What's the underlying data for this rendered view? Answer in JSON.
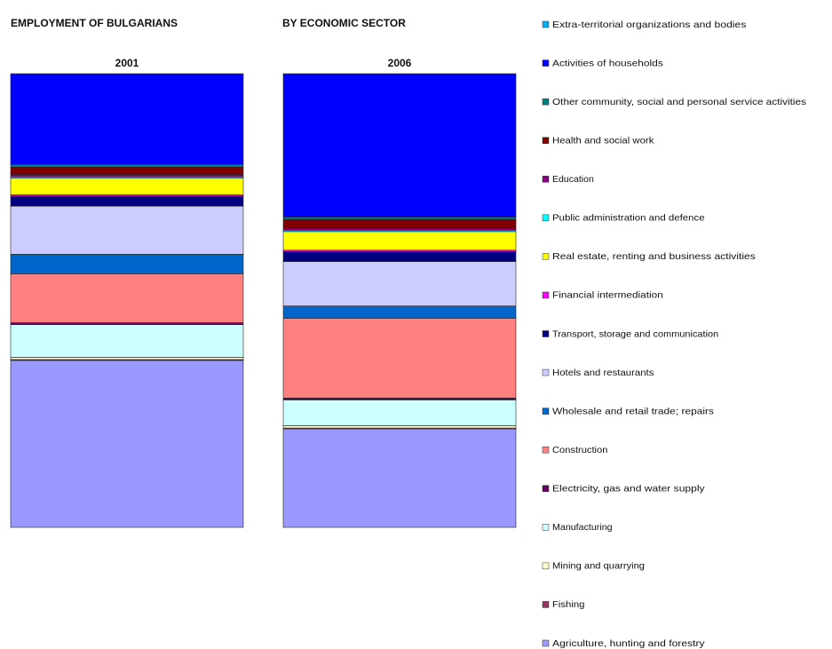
{
  "chart_data": {
    "type": "stacked-bar-100",
    "title": [
      "EMPLOYMENT OF BULGARIANS",
      "BY ECONOMIC SECTOR"
    ],
    "categories": [
      "2001",
      "2006"
    ],
    "ylim": [
      0,
      100
    ],
    "series": [
      {
        "name": "Agriculture, hunting and forestry",
        "color": "#9999ff",
        "values": [
          36.8,
          21.7
        ]
      },
      {
        "name": "Fishing",
        "color": "#993366",
        "values": [
          0.2,
          0.2
        ]
      },
      {
        "name": "Mining and quarrying",
        "color": "#ffffcc",
        "values": [
          0.5,
          0.5
        ]
      },
      {
        "name": "Manufacturing",
        "color": "#ccffff",
        "values": [
          7.2,
          5.7
        ]
      },
      {
        "name": "Electricity, gas and water supply",
        "color": "#660066",
        "values": [
          0.4,
          0.4
        ]
      },
      {
        "name": "Construction",
        "color": "#ff8080",
        "values": [
          10.8,
          17.6
        ]
      },
      {
        "name": "Wholesale and retail trade; repairs",
        "color": "#0066cc",
        "values": [
          4.3,
          2.7
        ]
      },
      {
        "name": "Hotels and restaurants",
        "color": "#ccccff",
        "values": [
          10.6,
          9.8
        ]
      },
      {
        "name": "Transport, storage and communication",
        "color": "#000080",
        "values": [
          2.2,
          2.2
        ]
      },
      {
        "name": "Financial intermediation",
        "color": "#ff00ff",
        "values": [
          0.3,
          0.3
        ]
      },
      {
        "name": "Real estate, renting and business activities",
        "color": "#ffff00",
        "values": [
          3.7,
          4.1
        ]
      },
      {
        "name": "Public administration and defence",
        "color": "#00ffff",
        "values": [
          0.3,
          0.3
        ]
      },
      {
        "name": "Education",
        "color": "#800080",
        "values": [
          0.5,
          0.4
        ]
      },
      {
        "name": "Health and social work",
        "color": "#800000",
        "values": [
          1.6,
          2.0
        ]
      },
      {
        "name": "Other community, social and personal service activities",
        "color": "#008080",
        "values": [
          0.6,
          0.5
        ]
      },
      {
        "name": "Activities of households",
        "color": "#0000ff",
        "values": [
          19.9,
          31.5
        ]
      },
      {
        "name": "Extra-territorial organizations and bodies",
        "color": "#00b0f0",
        "values": [
          0.1,
          0.1
        ]
      }
    ]
  }
}
